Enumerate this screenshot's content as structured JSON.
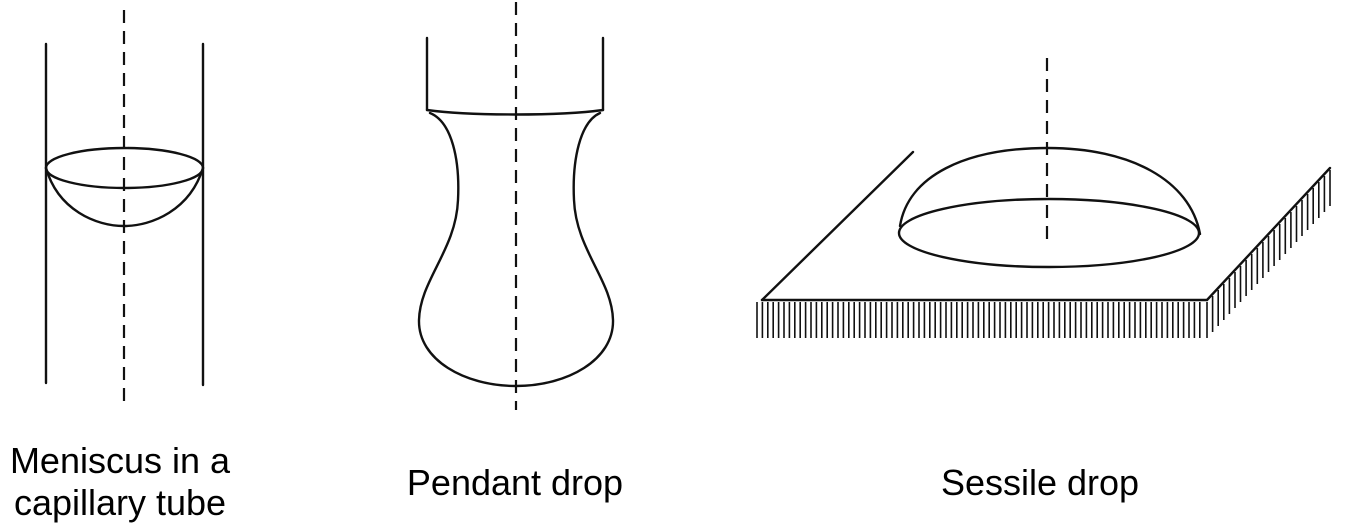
{
  "figures": [
    {
      "id": "meniscus",
      "caption": [
        "Meniscus in a",
        "capillary tube"
      ]
    },
    {
      "id": "pendant",
      "caption": [
        "Pendant drop"
      ]
    },
    {
      "id": "sessile",
      "caption": [
        "Sessile drop"
      ]
    }
  ]
}
